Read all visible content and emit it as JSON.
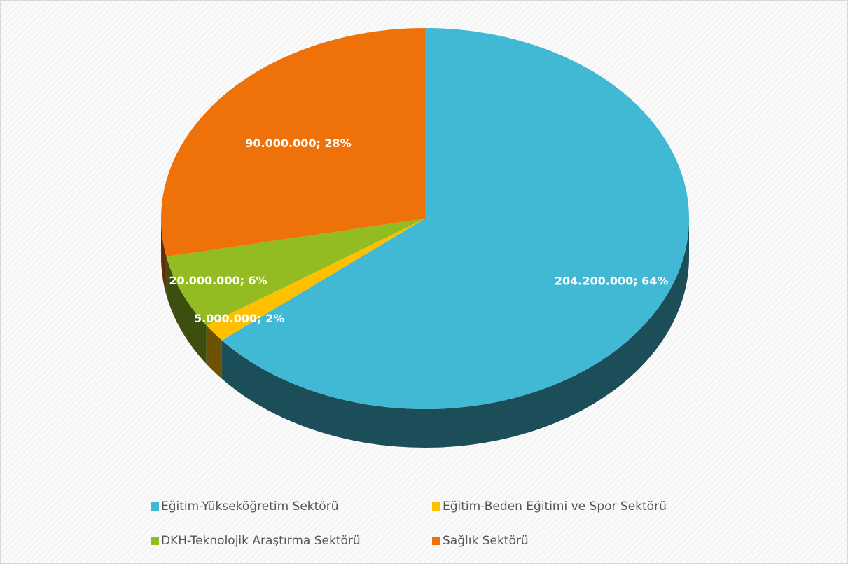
{
  "chart_data": {
    "type": "pie",
    "categories": [
      "Eğitim-Yükseköğretim Sektörü",
      "Eğitim-Beden Eğitimi ve Spor Sektörü",
      "DKH-Teknolojik Araştırma Sektörü",
      "Sağlık Sektörü"
    ],
    "values": [
      204200000,
      5000000,
      20000000,
      90000000
    ],
    "value_labels": [
      "204.200.000; 64%",
      "5.000.000; 2%",
      "20.000.000; 6%",
      "90.000.000; 28%"
    ],
    "colors": [
      "#41b9d5",
      "#ffc000",
      "#92bc22",
      "#ee7109"
    ],
    "legend": "bottom"
  }
}
